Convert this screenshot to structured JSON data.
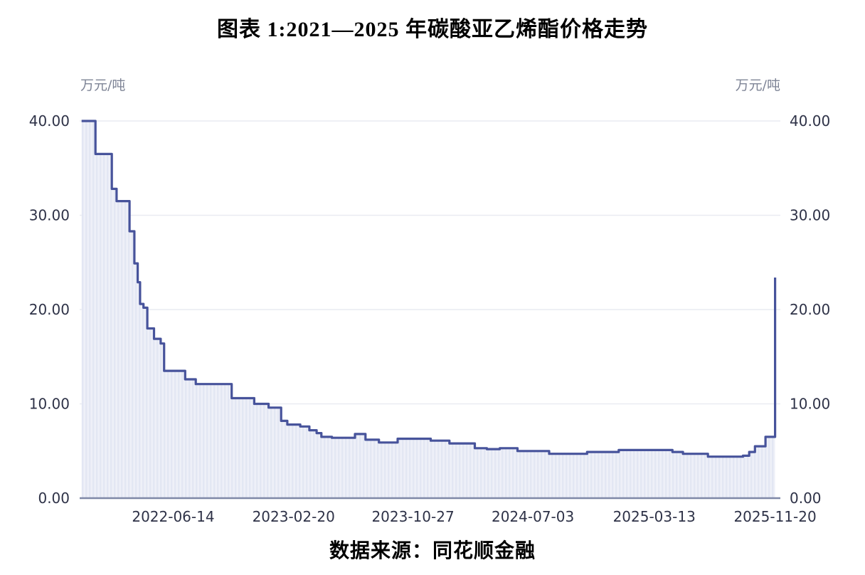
{
  "title": "图表 1:2021—2025 年碳酸亚乙烯酯价格走势",
  "source": "数据来源：同花顺金融",
  "units": {
    "left": "万元/吨",
    "right": "万元/吨"
  },
  "chart_data": {
    "type": "line",
    "title": "2021—2025 年碳酸亚乙烯酯价格走势",
    "ylabel": "万元/吨",
    "xlabel": "",
    "ylim": [
      0,
      40
    ],
    "grid": true,
    "legend": "none",
    "y_ticks": [
      {
        "value": 0,
        "label": "0.00"
      },
      {
        "value": 10,
        "label": "10.00"
      },
      {
        "value": 20,
        "label": "20.00"
      },
      {
        "value": 30,
        "label": "30.00"
      },
      {
        "value": 40,
        "label": "40.00"
      }
    ],
    "x_ticks": [
      "2022-06-14",
      "2023-02-20",
      "2023-10-27",
      "2024-07-03",
      "2025-03-13",
      "2025-11-20"
    ],
    "x_domain": [
      "2021-12-01",
      "2025-12-01"
    ],
    "series": [
      {
        "name": "碳酸亚乙烯酯价格",
        "step": "after",
        "points": [
          [
            "2021-12-05",
            40.0
          ],
          [
            "2022-01-03",
            36.5
          ],
          [
            "2022-02-06",
            32.8
          ],
          [
            "2022-02-16",
            31.5
          ],
          [
            "2022-03-15",
            28.3
          ],
          [
            "2022-03-25",
            24.9
          ],
          [
            "2022-04-01",
            22.9
          ],
          [
            "2022-04-06",
            20.6
          ],
          [
            "2022-04-13",
            20.2
          ],
          [
            "2022-04-21",
            18.0
          ],
          [
            "2022-05-05",
            16.9
          ],
          [
            "2022-05-19",
            16.4
          ],
          [
            "2022-05-26",
            13.5
          ],
          [
            "2022-07-09",
            12.6
          ],
          [
            "2022-07-31",
            12.1
          ],
          [
            "2022-10-14",
            10.6
          ],
          [
            "2022-11-30",
            10.0
          ],
          [
            "2022-12-30",
            9.6
          ],
          [
            "2023-01-25",
            8.2
          ],
          [
            "2023-02-07",
            7.8
          ],
          [
            "2023-03-06",
            7.6
          ],
          [
            "2023-03-25",
            7.2
          ],
          [
            "2023-04-09",
            6.9
          ],
          [
            "2023-04-19",
            6.5
          ],
          [
            "2023-05-11",
            6.4
          ],
          [
            "2023-06-28",
            6.8
          ],
          [
            "2023-07-20",
            6.2
          ],
          [
            "2023-08-17",
            5.9
          ],
          [
            "2023-09-25",
            6.3
          ],
          [
            "2023-12-03",
            6.1
          ],
          [
            "2024-01-11",
            5.8
          ],
          [
            "2024-03-04",
            5.3
          ],
          [
            "2024-03-29",
            5.2
          ],
          [
            "2024-04-25",
            5.3
          ],
          [
            "2024-06-01",
            5.0
          ],
          [
            "2024-08-06",
            4.7
          ],
          [
            "2024-10-24",
            4.9
          ],
          [
            "2024-12-29",
            5.1
          ],
          [
            "2025-04-20",
            4.9
          ],
          [
            "2025-05-12",
            4.7
          ],
          [
            "2025-07-03",
            4.4
          ],
          [
            "2025-09-14",
            4.5
          ],
          [
            "2025-09-27",
            4.9
          ],
          [
            "2025-10-09",
            5.5
          ],
          [
            "2025-10-31",
            6.5
          ],
          [
            "2025-11-20",
            23.4
          ]
        ]
      }
    ],
    "colors": {
      "line": "#47539b",
      "area_base": "#eef0f8",
      "area_stripe": "#e3e7f3",
      "grid": "#e9ebf2",
      "axis": "#7f88a7",
      "tick_text": "#2e3247",
      "unit_text": "#7e8496"
    }
  }
}
